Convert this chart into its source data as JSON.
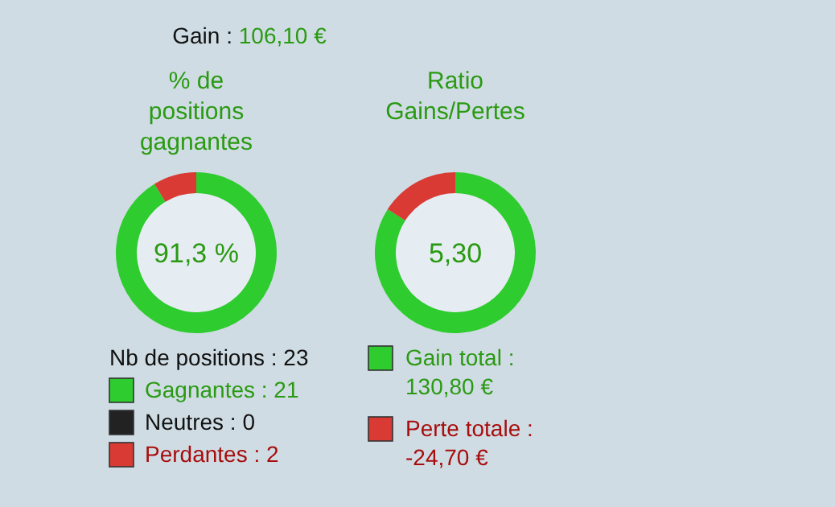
{
  "chart_data": [
    {
      "type": "other",
      "title": "Gain :",
      "subtitle": "106,10 €"
    },
    {
      "type": "donut",
      "title": "% de positions gagnantes",
      "categories": [
        "Gagnantes : 21",
        "Neutres : 0",
        "Perdantes : 2"
      ],
      "values": [
        91.3,
        0,
        8.7
      ],
      "colors": [
        "#2ecc2e",
        "#222222",
        "#d93a33"
      ],
      "legend_title": "Nb de positions : 23",
      "legend": "bottom",
      "annotations": [
        "91,3 %"
      ]
    },
    {
      "type": "donut",
      "title": "Ratio Gains/Pertes",
      "categories": [
        "Gain total : 130,80 €",
        "Perte totale : -24,70 €"
      ],
      "values": [
        84.1,
        15.9
      ],
      "colors": [
        "#2ecc2e",
        "#d93a33"
      ],
      "legend": "bottom",
      "annotations": [
        "5,30"
      ]
    }
  ]
}
